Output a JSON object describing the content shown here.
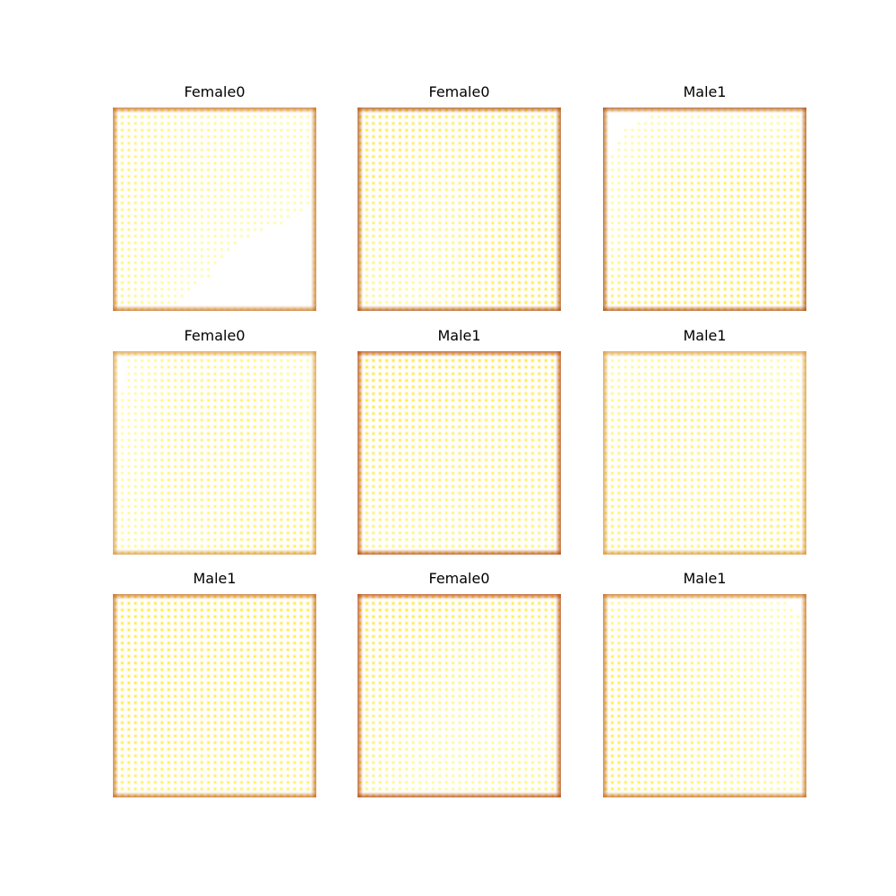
{
  "panels": [
    {
      "title": "Female0",
      "intensity": [
        [
          0.55,
          0.35,
          0.25,
          0.2
        ],
        [
          0.55,
          0.45,
          0.3,
          0.15
        ],
        [
          0.5,
          0.2,
          0.1,
          0.05
        ],
        [
          0.45,
          0.1,
          0.05,
          0.05
        ]
      ],
      "frame": "#c8702a"
    },
    {
      "title": "Female0",
      "intensity": [
        [
          0.9,
          0.8,
          0.7,
          0.6
        ],
        [
          0.85,
          0.5,
          0.6,
          0.65
        ],
        [
          0.6,
          0.3,
          0.7,
          0.85
        ],
        [
          0.3,
          0.25,
          0.75,
          0.9
        ]
      ],
      "frame": "#b0541c"
    },
    {
      "title": "Male1",
      "intensity": [
        [
          0.05,
          0.1,
          0.1,
          0.15
        ],
        [
          0.1,
          0.6,
          0.7,
          0.7
        ],
        [
          0.2,
          0.7,
          0.75,
          0.8
        ],
        [
          0.65,
          0.85,
          0.85,
          0.85
        ]
      ],
      "frame": "#b0541c"
    },
    {
      "title": "Female0",
      "intensity": [
        [
          0.05,
          0.45,
          0.4,
          0.1
        ],
        [
          0.1,
          0.5,
          0.6,
          0.2
        ],
        [
          0.2,
          0.55,
          0.5,
          0.4
        ],
        [
          0.3,
          0.3,
          0.65,
          0.85
        ]
      ],
      "frame": "#d99a4a"
    },
    {
      "title": "Male1",
      "intensity": [
        [
          0.95,
          0.85,
          0.85,
          0.9
        ],
        [
          0.9,
          0.7,
          0.65,
          0.7
        ],
        [
          0.7,
          0.55,
          0.6,
          0.6
        ],
        [
          0.5,
          0.4,
          0.55,
          0.45
        ]
      ],
      "frame": "#b84a18"
    },
    {
      "title": "Male1",
      "intensity": [
        [
          0.2,
          0.3,
          0.3,
          0.1
        ],
        [
          0.4,
          0.6,
          0.55,
          0.25
        ],
        [
          0.55,
          0.55,
          0.5,
          0.45
        ],
        [
          0.6,
          0.45,
          0.7,
          0.75
        ]
      ],
      "frame": "#d99a4a"
    },
    {
      "title": "Male1",
      "intensity": [
        [
          0.85,
          0.85,
          0.85,
          0.85
        ],
        [
          0.85,
          0.8,
          0.8,
          0.8
        ],
        [
          0.8,
          0.75,
          0.75,
          0.7
        ],
        [
          0.6,
          0.55,
          0.6,
          0.55
        ]
      ],
      "frame": "#c8702a"
    },
    {
      "title": "Female0",
      "intensity": [
        [
          0.95,
          0.9,
          0.85,
          0.85
        ],
        [
          0.85,
          0.6,
          0.4,
          0.3
        ],
        [
          0.7,
          0.3,
          0.25,
          0.2
        ],
        [
          0.5,
          0.2,
          0.35,
          0.6
        ]
      ],
      "frame": "#b84a18"
    },
    {
      "title": "Male1",
      "intensity": [
        [
          0.3,
          0.2,
          0.15,
          0.1
        ],
        [
          0.75,
          0.65,
          0.4,
          0.15
        ],
        [
          0.8,
          0.65,
          0.55,
          0.2
        ],
        [
          0.75,
          0.6,
          0.4,
          0.25
        ]
      ],
      "frame": "#c8702a"
    }
  ]
}
